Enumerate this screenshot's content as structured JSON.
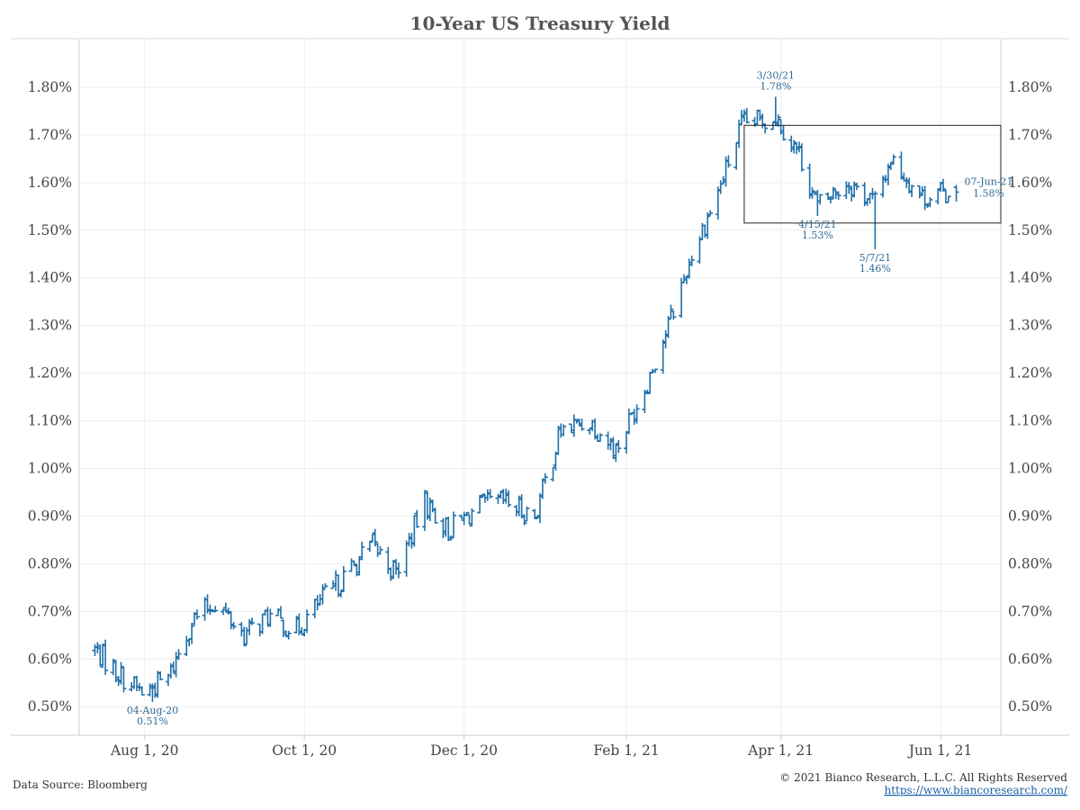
{
  "chart_data": {
    "type": "ohlc",
    "title": "10-Year US Treasury Yield",
    "xlabel": "",
    "ylabel": "",
    "ylim": [
      0.44,
      1.9
    ],
    "y_ticks": [
      0.5,
      0.6,
      0.7,
      0.8,
      0.9,
      1.0,
      1.1,
      1.2,
      1.3,
      1.4,
      1.5,
      1.6,
      1.7,
      1.8
    ],
    "y_tick_labels": [
      "0.50%",
      "0.60%",
      "0.70%",
      "0.80%",
      "0.90%",
      "1.00%",
      "1.10%",
      "1.20%",
      "1.30%",
      "1.40%",
      "1.50%",
      "1.60%",
      "1.70%",
      "1.80%"
    ],
    "x_range": [
      "2020-07-07",
      "2021-06-24"
    ],
    "x_ticks": [
      "2020-08-01",
      "2020-10-01",
      "2020-12-01",
      "2021-02-01",
      "2021-04-01",
      "2021-06-01"
    ],
    "x_tick_labels": [
      "Aug 1, 20",
      "Oct 1, 20",
      "Dec 1, 20",
      "Feb 1, 21",
      "Apr 1, 21",
      "Jun 1, 21"
    ],
    "series_color": "#1f6fa8",
    "grid": true,
    "range_box": {
      "x_start": "2021-03-18",
      "x_end": "2021-06-24",
      "y_low": 1.515,
      "y_high": 1.72
    },
    "series": [
      {
        "dates": [
          "2020-07-13",
          "2020-07-22",
          "2020-07-31",
          "2020-08-10",
          "2020-08-19",
          "2020-08-28",
          "2020-09-08",
          "2020-09-17",
          "2020-09-28",
          "2020-10-07",
          "2020-10-16",
          "2020-10-27",
          "2020-11-05",
          "2020-11-16",
          "2020-11-25",
          "2020-12-07",
          "2020-12-16",
          "2020-12-28",
          "2021-01-07",
          "2021-01-18",
          "2021-01-28",
          "2021-02-08",
          "2021-02-17",
          "2021-02-26",
          "2021-03-08",
          "2021-03-17",
          "2021-03-30",
          "2021-04-08",
          "2021-04-15",
          "2021-04-26",
          "2021-05-07",
          "2021-05-13",
          "2021-05-25",
          "2021-06-07"
        ],
        "close": [
          0.62,
          0.57,
          0.53,
          0.56,
          0.68,
          0.72,
          0.65,
          0.69,
          0.66,
          0.72,
          0.77,
          0.84,
          0.78,
          0.93,
          0.87,
          0.92,
          0.93,
          0.9,
          1.08,
          1.1,
          1.04,
          1.17,
          1.3,
          1.45,
          1.58,
          1.72,
          1.74,
          1.66,
          1.55,
          1.6,
          1.56,
          1.65,
          1.57,
          1.58
        ]
      }
    ],
    "annotations": [
      {
        "date": "2020-08-04",
        "label": "04-Aug-20",
        "value": "0.51%",
        "position": "below"
      },
      {
        "date": "2021-03-30",
        "label": "3/30/21",
        "value": "1.78%",
        "position": "above"
      },
      {
        "date": "2021-04-15",
        "label": "4/15/21",
        "value": "1.53%",
        "position": "below"
      },
      {
        "date": "2021-05-07",
        "label": "5/7/21",
        "value": "1.46%",
        "position": "below"
      },
      {
        "date": "2021-06-07",
        "label": "07-Jun-21",
        "value": "1.58%",
        "position": "right"
      }
    ]
  },
  "footer": {
    "source": "Data Source: Bloomberg",
    "copyright": "© 2021 Bianco Research, L.L.C. All Rights Reserved",
    "url": "https://www.biancoresearch.com/"
  }
}
